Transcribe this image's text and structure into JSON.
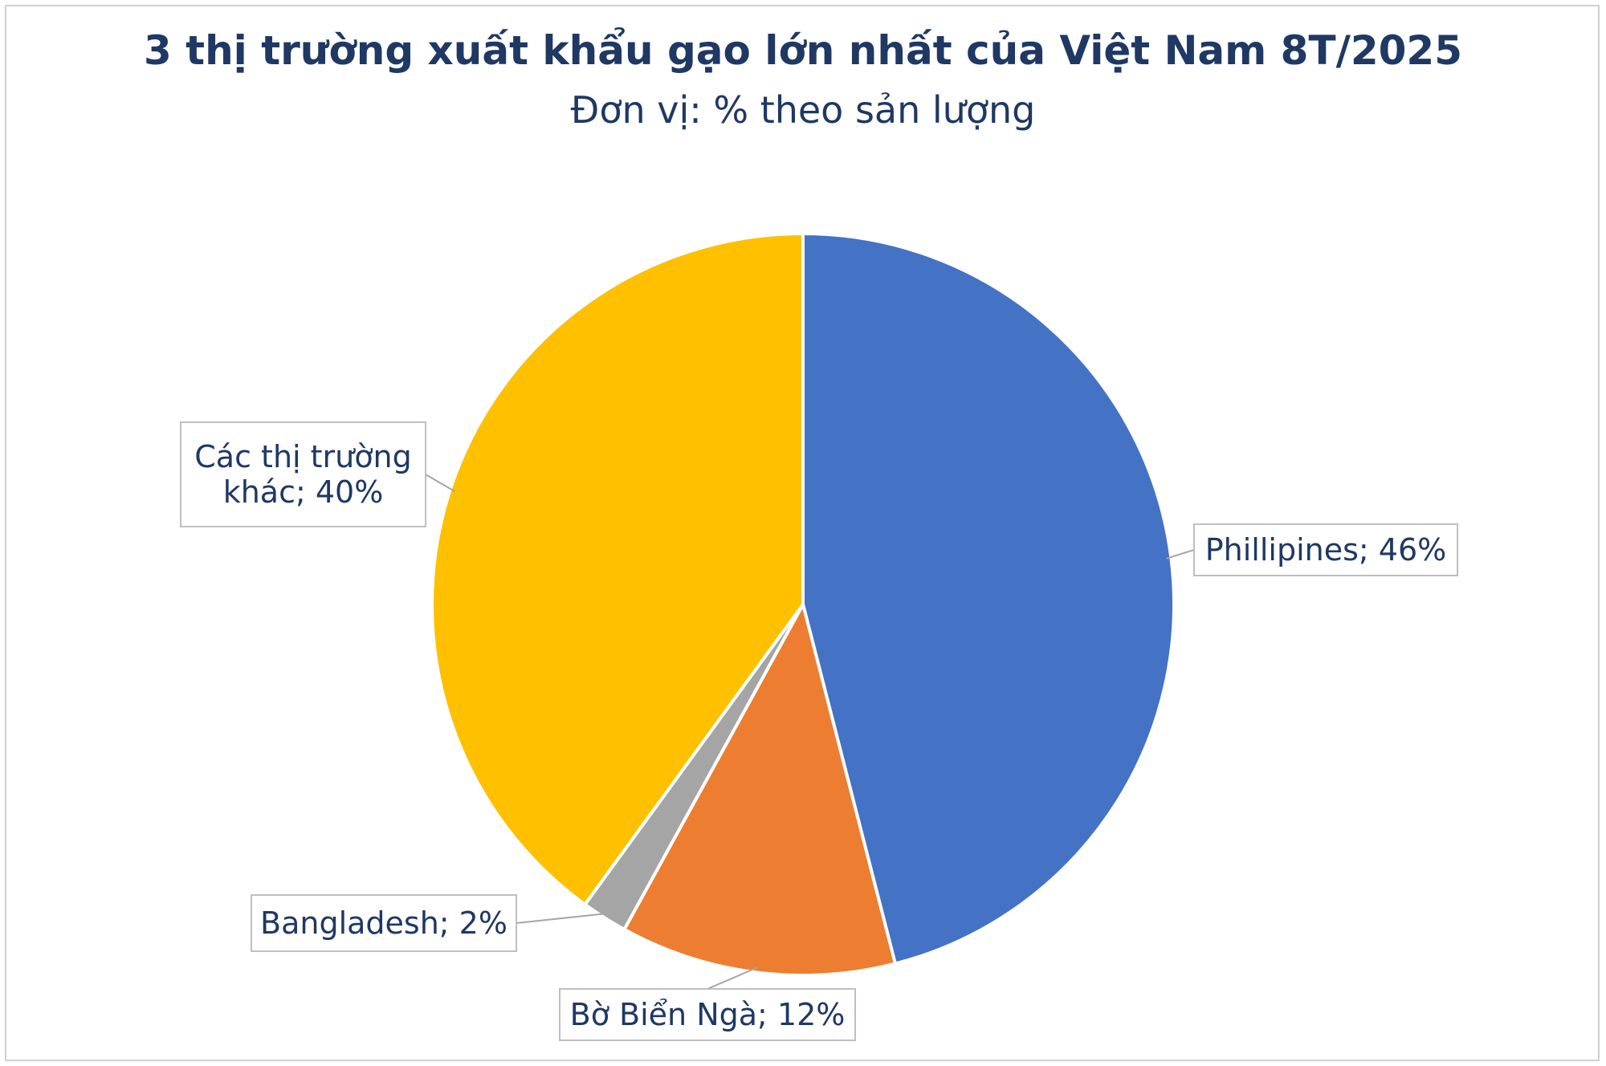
{
  "chart_data": {
    "type": "pie",
    "title": "3 thị trường xuất khẩu gạo lớn nhất của Việt Nam 8T/2025",
    "subtitle": "Đơn vị: % theo sản lượng",
    "slices": [
      {
        "name": "Phillipines",
        "value": 46,
        "label": "Phillipines; 46%",
        "color": "#4472c4"
      },
      {
        "name": "Bờ Biển Ngà",
        "value": 12,
        "label": "Bờ Biển Ngà; 12%",
        "color": "#ed7d31"
      },
      {
        "name": "Bangladesh",
        "value": 2,
        "label": "Bangladesh; 2%",
        "color": "#a5a5a5"
      },
      {
        "name": "Các thị trường khác",
        "value": 40,
        "label": "Các thị trường khác; 40%",
        "label_lines": [
          "Các thị trường",
          "khác; 40%"
        ],
        "color": "#ffc000"
      }
    ]
  }
}
